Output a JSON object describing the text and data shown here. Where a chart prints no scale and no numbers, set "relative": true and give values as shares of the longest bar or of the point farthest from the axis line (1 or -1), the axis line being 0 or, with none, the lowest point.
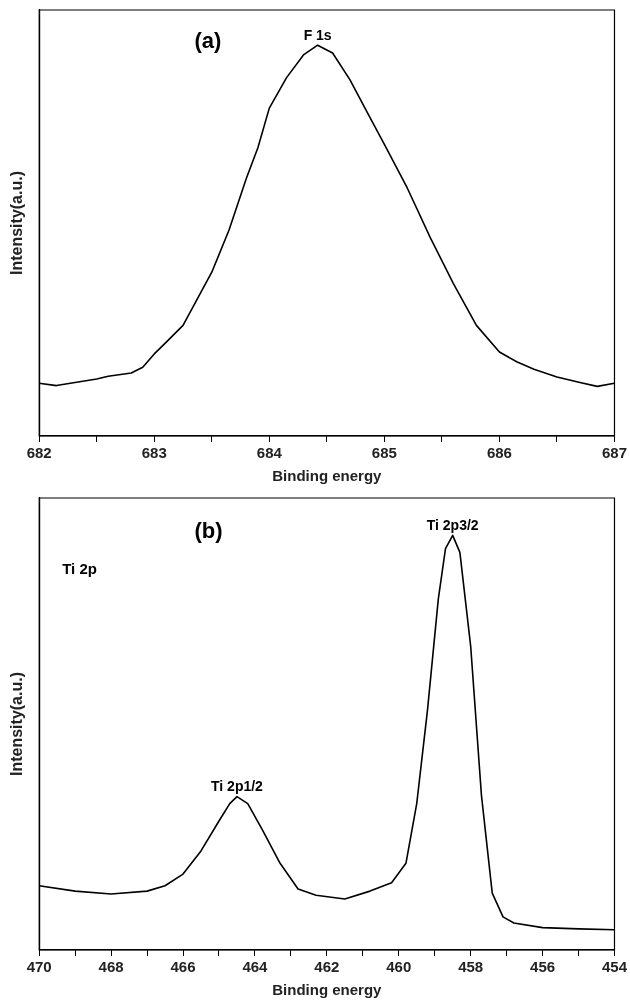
{
  "chart_data": [
    {
      "type": "line",
      "relative": true,
      "xlabel": "Binding energy",
      "ylabel": "Intensity(a.u.)",
      "annotations": [
        "(a)",
        {
          "text": "F 1s",
          "x": 684.42,
          "y": 1.0
        }
      ],
      "xlim": [
        682,
        687
      ],
      "xticks": [
        682,
        {
          "value": 682.5,
          "label": null
        },
        683,
        {
          "value": 683.5,
          "label": null
        },
        684,
        {
          "value": 684.5,
          "label": null
        },
        685,
        {
          "value": 685.5,
          "label": null
        },
        686,
        {
          "value": 686.5,
          "label": null
        },
        687
      ],
      "grid": false,
      "legend": false,
      "marker": "none",
      "line_style": "solid",
      "series": [
        {
          "color": "#000000",
          "x": [
            682.0,
            682.15,
            682.5,
            682.6,
            682.8,
            682.9,
            683.0,
            683.1,
            683.25,
            683.5,
            683.65,
            683.8,
            683.9,
            684.0,
            684.15,
            684.3,
            684.42,
            684.55,
            684.7,
            684.85,
            685.0,
            685.2,
            685.4,
            685.6,
            685.8,
            686.0,
            686.15,
            686.3,
            686.5,
            686.7,
            686.85,
            687.0
          ],
          "values": [
            0.135,
            0.129,
            0.146,
            0.153,
            0.161,
            0.176,
            0.21,
            0.239,
            0.283,
            0.419,
            0.527,
            0.659,
            0.737,
            0.839,
            0.917,
            0.976,
            1.0,
            0.98,
            0.912,
            0.829,
            0.746,
            0.634,
            0.507,
            0.39,
            0.283,
            0.215,
            0.19,
            0.171,
            0.151,
            0.137,
            0.127,
            0.135
          ]
        }
      ]
    },
    {
      "type": "line",
      "relative": true,
      "xlabel": "Binding energy",
      "ylabel": "Intensity(a.u.)",
      "annotations": [
        "(b)",
        "Ti 2p",
        {
          "text": "Ti 2p1/2",
          "x": 464.5,
          "y": 0.37
        },
        {
          "text": "Ti 2p3/2",
          "x": 458.5,
          "y": 1.0
        }
      ],
      "xlim": [
        470,
        454
      ],
      "xticks": [
        470,
        {
          "value": 469,
          "label": null
        },
        468,
        {
          "value": 467,
          "label": null
        },
        466,
        {
          "value": 465,
          "label": null
        },
        464,
        {
          "value": 463,
          "label": null
        },
        462,
        {
          "value": 461,
          "label": null
        },
        460,
        {
          "value": 459,
          "label": null
        },
        458,
        {
          "value": 457,
          "label": null
        },
        456,
        {
          "value": 455,
          "label": null
        },
        454
      ],
      "grid": false,
      "legend": false,
      "marker": "none",
      "line_style": "solid",
      "series": [
        {
          "color": "#000000",
          "x": [
            470,
            469,
            468,
            467,
            466.5,
            466,
            465.5,
            465,
            464.7,
            464.5,
            464.2,
            463.8,
            463.3,
            462.8,
            462.3,
            461.5,
            460.8,
            460.2,
            459.8,
            459.5,
            459.2,
            458.9,
            458.7,
            458.5,
            458.3,
            458.0,
            457.7,
            457.4,
            457.1,
            456.8,
            456,
            455,
            454
          ],
          "values": [
            0.155,
            0.142,
            0.135,
            0.142,
            0.155,
            0.183,
            0.239,
            0.311,
            0.353,
            0.37,
            0.353,
            0.291,
            0.209,
            0.147,
            0.132,
            0.123,
            0.142,
            0.162,
            0.209,
            0.353,
            0.579,
            0.846,
            0.968,
            1.0,
            0.959,
            0.733,
            0.373,
            0.137,
            0.08,
            0.065,
            0.054,
            0.051,
            0.049
          ]
        }
      ]
    }
  ]
}
